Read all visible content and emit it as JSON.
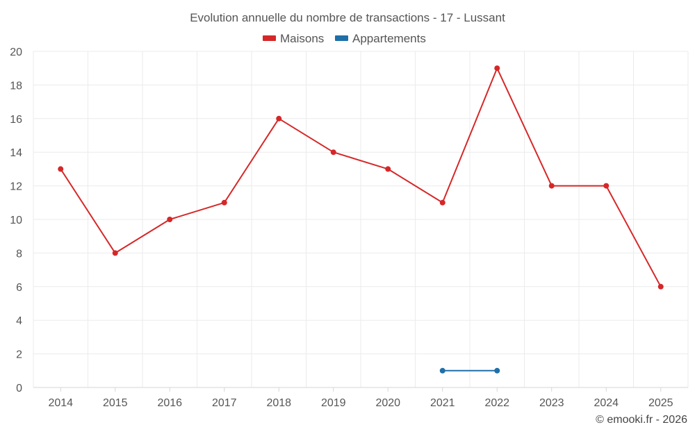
{
  "chart_data": {
    "type": "line",
    "title": "Evolution annuelle du nombre de transactions - 17 - Lussant",
    "xlabel": "",
    "ylabel": "",
    "categories": [
      "2014",
      "2015",
      "2016",
      "2017",
      "2018",
      "2019",
      "2020",
      "2021",
      "2022",
      "2023",
      "2024",
      "2025"
    ],
    "ylim": [
      0,
      20
    ],
    "yticks": [
      "0",
      "2",
      "4",
      "6",
      "8",
      "10",
      "12",
      "14",
      "16",
      "18",
      "20"
    ],
    "grid": true,
    "legend_position": "top-center",
    "series": [
      {
        "name": "Maisons",
        "color": "#d62728",
        "values": [
          13,
          8,
          10,
          11,
          16,
          14,
          13,
          11,
          19,
          12,
          12,
          6
        ]
      },
      {
        "name": "Appartements",
        "color": "#1f6fa8",
        "values": [
          null,
          null,
          null,
          null,
          null,
          null,
          null,
          1,
          1,
          null,
          null,
          null
        ]
      }
    ]
  },
  "credit": "© emooki.fr - 2026"
}
